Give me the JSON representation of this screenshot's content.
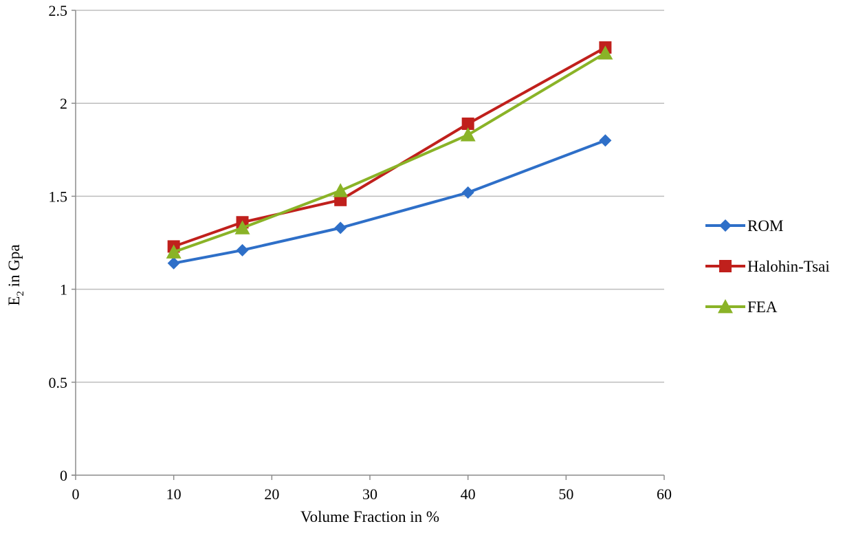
{
  "chart_data": {
    "type": "line",
    "title": "",
    "xlabel": "Volume Fraction in %",
    "ylabel": {
      "base": "E",
      "sub": "2",
      "rest": " in Gpa"
    },
    "xlim": [
      0,
      60
    ],
    "ylim": [
      0,
      2.5
    ],
    "xticks": [
      "0",
      "10",
      "20",
      "30",
      "40",
      "50",
      "60"
    ],
    "yticks": [
      "0",
      "0.5",
      "1",
      "1.5",
      "2",
      "2.5"
    ],
    "grid": "horizontal",
    "legend_position": "right",
    "x": [
      10,
      17,
      27,
      40,
      54
    ],
    "series": [
      {
        "name": "ROM",
        "values": [
          1.14,
          1.21,
          1.33,
          1.52,
          1.8
        ],
        "color": "#2e6fc8",
        "marker": "diamond"
      },
      {
        "name": "Halohin-Tsai",
        "values": [
          1.23,
          1.36,
          1.48,
          1.89,
          2.3
        ],
        "color": "#c0201c",
        "marker": "square"
      },
      {
        "name": "FEA",
        "values": [
          1.2,
          1.33,
          1.53,
          1.83,
          2.27
        ],
        "color": "#8ab327",
        "marker": "triangle"
      }
    ]
  }
}
